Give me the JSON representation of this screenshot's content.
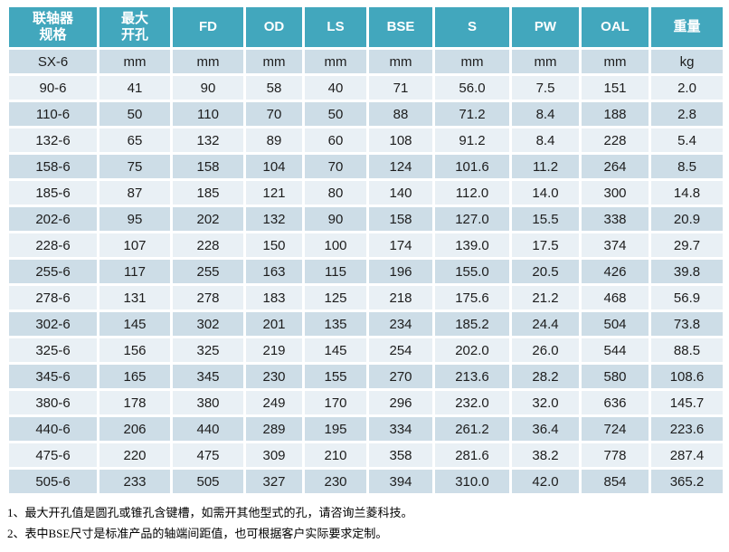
{
  "colors": {
    "header_bg": "#42A7BD",
    "header_text": "#ffffff",
    "row_dark": "#CDDDE7",
    "row_light": "#E9F0F5",
    "cell_text": "#1d1d1d"
  },
  "table": {
    "columns": [
      {
        "key": "spec",
        "label": "联轴器\n规格"
      },
      {
        "key": "max-bore",
        "label": "最大\n开孔"
      },
      {
        "key": "fd",
        "label": "FD"
      },
      {
        "key": "od",
        "label": "OD"
      },
      {
        "key": "ls",
        "label": "LS"
      },
      {
        "key": "bse",
        "label": "BSE"
      },
      {
        "key": "s",
        "label": "S"
      },
      {
        "key": "pw",
        "label": "PW"
      },
      {
        "key": "oal",
        "label": "OAL"
      },
      {
        "key": "weight",
        "label": "重量"
      }
    ],
    "units_row": [
      "SX-6",
      "mm",
      "mm",
      "mm",
      "mm",
      "mm",
      "mm",
      "mm",
      "mm",
      "kg"
    ],
    "rows": [
      [
        "90-6",
        "41",
        "90",
        "58",
        "40",
        "71",
        "56.0",
        "7.5",
        "151",
        "2.0"
      ],
      [
        "110-6",
        "50",
        "110",
        "70",
        "50",
        "88",
        "71.2",
        "8.4",
        "188",
        "2.8"
      ],
      [
        "132-6",
        "65",
        "132",
        "89",
        "60",
        "108",
        "91.2",
        "8.4",
        "228",
        "5.4"
      ],
      [
        "158-6",
        "75",
        "158",
        "104",
        "70",
        "124",
        "101.6",
        "11.2",
        "264",
        "8.5"
      ],
      [
        "185-6",
        "87",
        "185",
        "121",
        "80",
        "140",
        "112.0",
        "14.0",
        "300",
        "14.8"
      ],
      [
        "202-6",
        "95",
        "202",
        "132",
        "90",
        "158",
        "127.0",
        "15.5",
        "338",
        "20.9"
      ],
      [
        "228-6",
        "107",
        "228",
        "150",
        "100",
        "174",
        "139.0",
        "17.5",
        "374",
        "29.7"
      ],
      [
        "255-6",
        "117",
        "255",
        "163",
        "115",
        "196",
        "155.0",
        "20.5",
        "426",
        "39.8"
      ],
      [
        "278-6",
        "131",
        "278",
        "183",
        "125",
        "218",
        "175.6",
        "21.2",
        "468",
        "56.9"
      ],
      [
        "302-6",
        "145",
        "302",
        "201",
        "135",
        "234",
        "185.2",
        "24.4",
        "504",
        "73.8"
      ],
      [
        "325-6",
        "156",
        "325",
        "219",
        "145",
        "254",
        "202.0",
        "26.0",
        "544",
        "88.5"
      ],
      [
        "345-6",
        "165",
        "345",
        "230",
        "155",
        "270",
        "213.6",
        "28.2",
        "580",
        "108.6"
      ],
      [
        "380-6",
        "178",
        "380",
        "249",
        "170",
        "296",
        "232.0",
        "32.0",
        "636",
        "145.7"
      ],
      [
        "440-6",
        "206",
        "440",
        "289",
        "195",
        "334",
        "261.2",
        "36.4",
        "724",
        "223.6"
      ],
      [
        "475-6",
        "220",
        "475",
        "309",
        "210",
        "358",
        "281.6",
        "38.2",
        "778",
        "287.4"
      ],
      [
        "505-6",
        "233",
        "505",
        "327",
        "230",
        "394",
        "310.0",
        "42.0",
        "854",
        "365.2"
      ]
    ],
    "footnotes": [
      "1、最大开孔值是圆孔或锥孔含键槽，如需开其他型式的孔，请咨询兰菱科技。",
      "2、表中BSE尺寸是标准产品的轴端间距值，也可根据客户实际要求定制。"
    ]
  }
}
